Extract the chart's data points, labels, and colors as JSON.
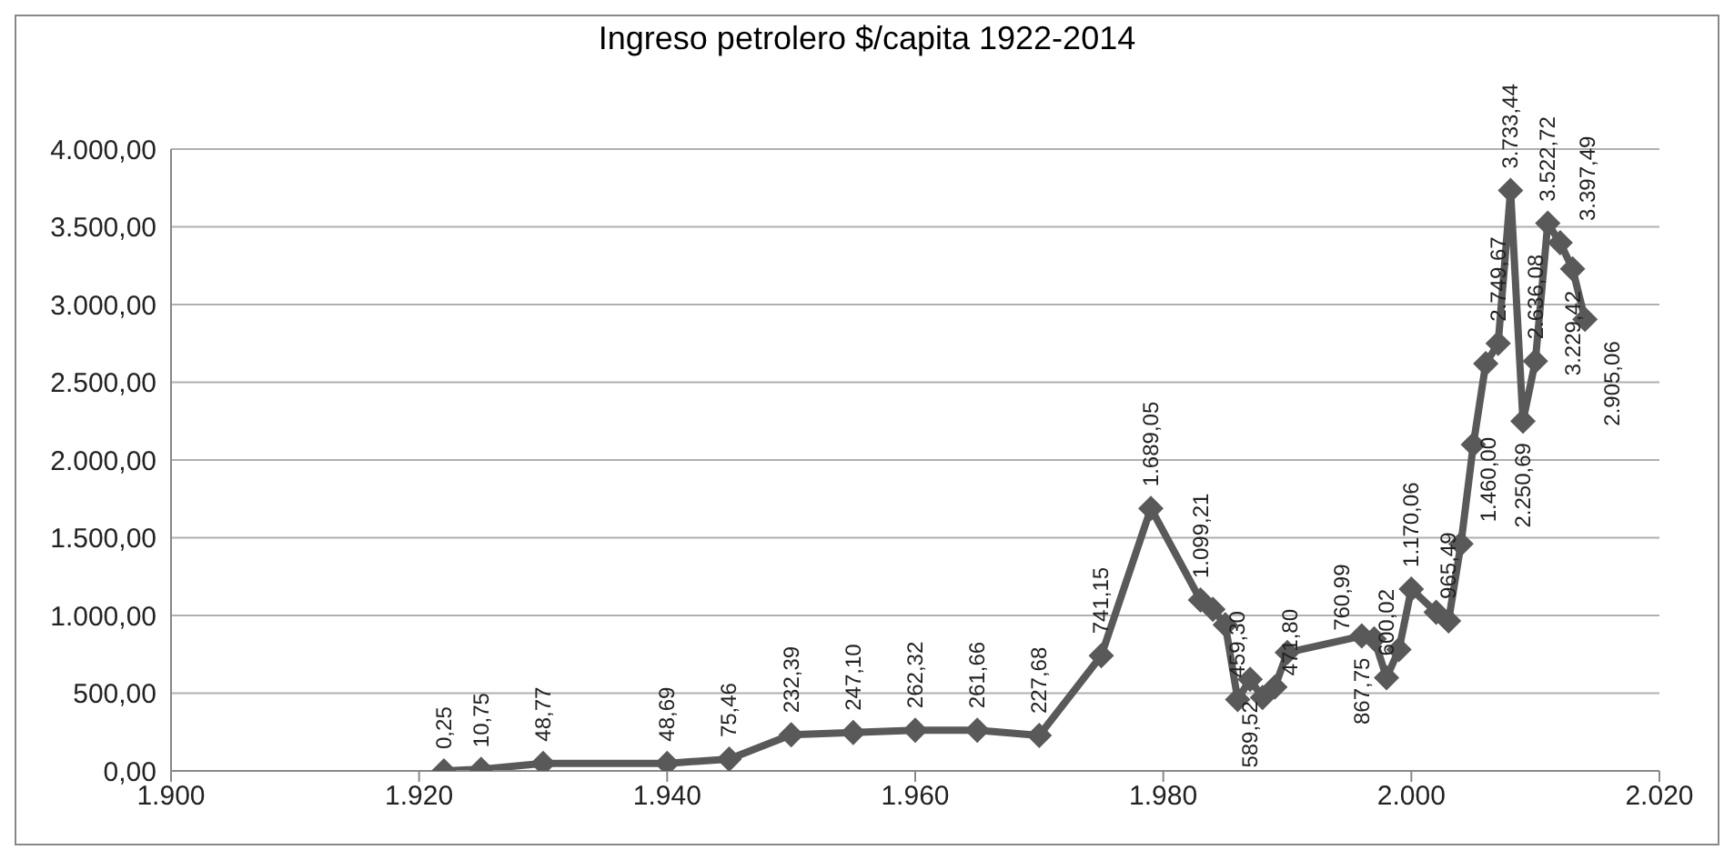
{
  "chart_data": {
    "type": "line",
    "title": "Ingreso petrolero $/capita 1922-2014",
    "x": [
      1922,
      1925,
      1930,
      1940,
      1945,
      1950,
      1955,
      1960,
      1965,
      1970,
      1975,
      1979,
      1983,
      1984,
      1985,
      1986,
      1987,
      1988,
      1989,
      1990,
      1996,
      1997,
      1998,
      1999,
      2000,
      2002,
      2003,
      2004,
      2005,
      2006,
      2007,
      2008,
      2009,
      2010,
      2011,
      2012,
      2013,
      2014
    ],
    "series": [
      {
        "color": "#595959",
        "values": [
          0.25,
          10.75,
          48.77,
          48.69,
          75.46,
          232.39,
          247.1,
          262.32,
          261.66,
          227.68,
          741.15,
          1689.05,
          1099.21,
          1040,
          940,
          459.3,
          589.52,
          471.8,
          540,
          760.99,
          867.75,
          850,
          600.02,
          780,
          1170.06,
          1020,
          965.49,
          1460,
          2100,
          2620,
          2749.67,
          3733.44,
          2250.69,
          2636.08,
          3522.72,
          3397.49,
          3229.42,
          2905.06
        ],
        "value_labels": [
          "0,25",
          "10,75",
          "48,77",
          "48,69",
          "75,46",
          "232,39",
          "247,10",
          "262,32",
          "261,66",
          "227,68",
          "741,15",
          "1.689,05",
          "1.099,21",
          null,
          null,
          "459,30",
          "589,52",
          "471,80",
          null,
          "760,99",
          "867,75",
          null,
          "600,02",
          null,
          "1.170,06",
          null,
          "965,49",
          "1.460,00",
          null,
          null,
          "2.749,67",
          "3.733,44",
          "2.250,69",
          "2.636,08",
          "3.522,72",
          "3.397,49",
          "3.229,42",
          "2.905,06"
        ]
      }
    ],
    "xlim": [
      1900,
      2020
    ],
    "xticks": [
      {
        "value": 1900,
        "label": "1.900"
      },
      {
        "value": 1920,
        "label": "1.920"
      },
      {
        "value": 1940,
        "label": "1.940"
      },
      {
        "value": 1960,
        "label": "1.960"
      },
      {
        "value": 1980,
        "label": "1.980"
      },
      {
        "value": 2000,
        "label": "2.000"
      },
      {
        "value": 2020,
        "label": "2.020"
      }
    ],
    "ylim": [
      0,
      4000
    ],
    "yticks": [
      {
        "value": 0,
        "label": "0,00"
      },
      {
        "value": 500,
        "label": "500,00"
      },
      {
        "value": 1000,
        "label": "1.000,00"
      },
      {
        "value": 1500,
        "label": "1.500,00"
      },
      {
        "value": 2000,
        "label": "2.000,00"
      },
      {
        "value": 2500,
        "label": "2.500,00"
      },
      {
        "value": 3000,
        "label": "3.000,00"
      },
      {
        "value": 3500,
        "label": "3.500,00"
      },
      {
        "value": 4000,
        "label": "4.000,00"
      }
    ],
    "grid": "y",
    "legend": false,
    "marker": "diamond",
    "line_style": "solid"
  }
}
